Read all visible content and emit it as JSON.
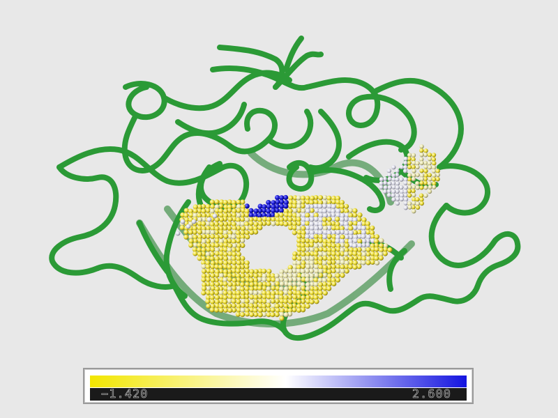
{
  "colors": {
    "background": "#e8e8e8",
    "backbone": "#2b9a36",
    "backbone_dark": "#177a22",
    "low": "#f2e600",
    "mid": "#ffffff",
    "high": "#1414e0"
  },
  "colorbar": {
    "min_label": "−1.420",
    "max_label": "2.600"
  }
}
